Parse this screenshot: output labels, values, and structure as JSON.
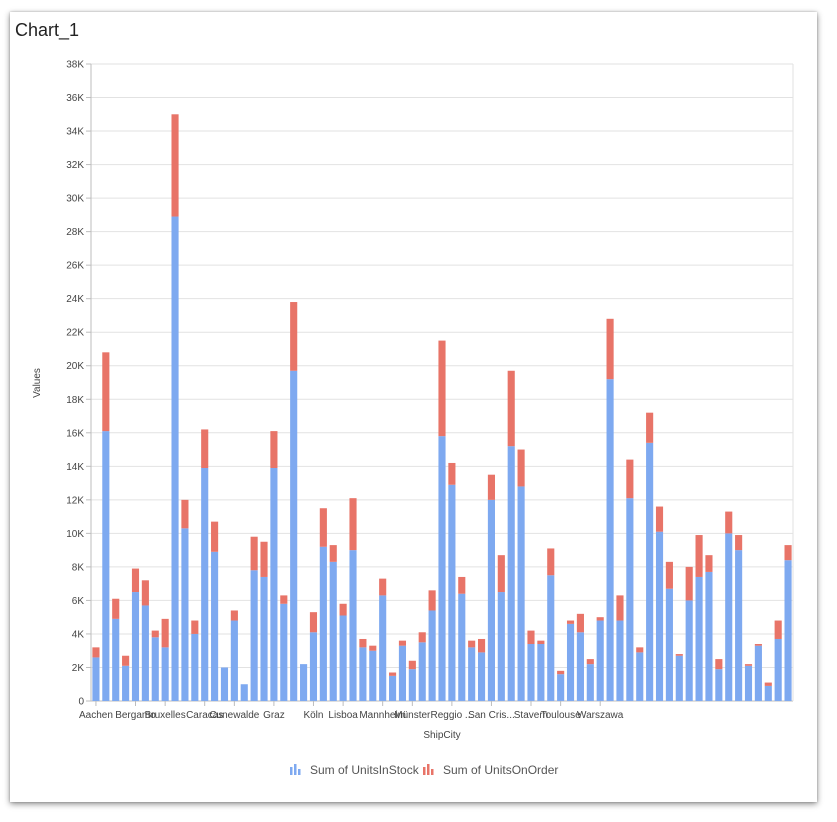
{
  "title": "Chart_1",
  "chart_data": {
    "type": "bar",
    "stacked": true,
    "xlabel": "ShipCity",
    "ylabel": "Values",
    "ylim": [
      0,
      38000
    ],
    "yticks": [
      0,
      2000,
      4000,
      6000,
      8000,
      10000,
      12000,
      14000,
      16000,
      18000,
      20000,
      22000,
      24000,
      26000,
      28000,
      30000,
      32000,
      34000,
      36000,
      38000
    ],
    "ytick_labels": [
      "0",
      "2K",
      "4K",
      "6K",
      "8K",
      "10K",
      "12K",
      "14K",
      "16K",
      "18K",
      "20K",
      "22K",
      "24K",
      "26K",
      "28K",
      "30K",
      "32K",
      "34K",
      "36K",
      "38K"
    ],
    "visible_category_labels": [
      "Aachen",
      "Bergamo",
      "Bruxelles",
      "Caracas",
      "Cunewalde",
      "Graz",
      "Köln",
      "Lisboa",
      "Mannheim",
      "Münster",
      "Reggio ...",
      "San Cris...",
      "Stavern",
      "Toulouse",
      "Warszawa"
    ],
    "visible_label_indices": [
      0,
      4,
      7,
      11,
      14,
      18,
      22,
      25,
      29,
      32,
      36,
      40,
      44,
      47,
      51
    ],
    "grid": true,
    "legend_position": "bottom",
    "series": [
      {
        "name": "Sum of UnitsInStock",
        "color": "#7ea9f0",
        "values": [
          2600,
          16100,
          4900,
          2100,
          6500,
          5700,
          3800,
          3200,
          28900,
          10300,
          4000,
          13900,
          8900,
          2000,
          4800,
          1000,
          7800,
          7400,
          13900,
          5800,
          19700,
          2200,
          4100,
          9200,
          8300,
          5100,
          9000,
          3200,
          3000,
          6300,
          1500,
          3300,
          1900,
          3500,
          5400,
          15800,
          12900,
          6400,
          3200,
          2900,
          12000,
          6500,
          15200,
          12800,
          3400,
          3400,
          7500,
          1600,
          4600,
          4100,
          2200,
          4800,
          19200,
          4800,
          12100,
          2900,
          15400,
          10100,
          6700,
          2700,
          6000,
          7400,
          7700,
          1900,
          10000,
          9000,
          2100,
          3300,
          900,
          3700,
          8400
        ]
      },
      {
        "name": "Sum of UnitsOnOrder",
        "color": "#e87468",
        "values": [
          600,
          4700,
          1200,
          600,
          1400,
          1500,
          400,
          1700,
          6100,
          1700,
          800,
          2300,
          1800,
          0,
          600,
          0,
          2000,
          2100,
          2200,
          500,
          4100,
          0,
          1200,
          2300,
          1000,
          700,
          3100,
          500,
          300,
          1000,
          200,
          300,
          500,
          600,
          1200,
          5700,
          1300,
          1000,
          400,
          800,
          1500,
          2200,
          4500,
          2200,
          800,
          200,
          1600,
          200,
          200,
          1100,
          300,
          200,
          3600,
          1500,
          2300,
          300,
          1800,
          1500,
          1600,
          100,
          2000,
          2500,
          1000,
          600,
          1300,
          900,
          100,
          100,
          200,
          1100,
          900
        ]
      }
    ]
  }
}
